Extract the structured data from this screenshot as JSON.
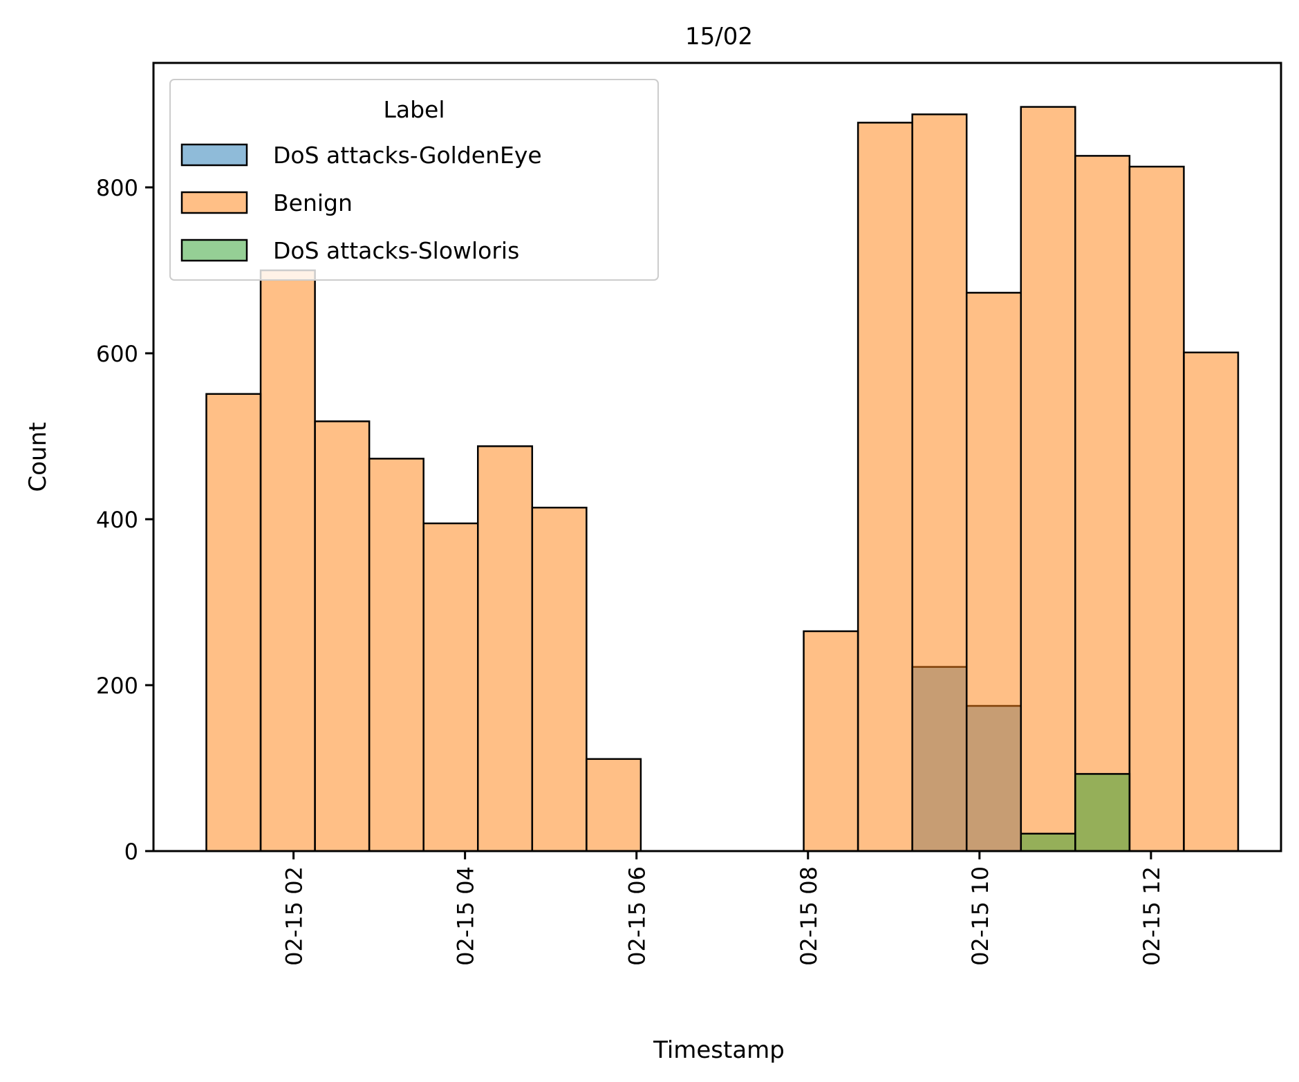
{
  "chart_data": {
    "type": "bar",
    "title": "15/02",
    "xlabel": "Timestamp",
    "ylabel": "Count",
    "xlim": [
      "2022-02-15 00:22",
      "2022-02-15 13:31"
    ],
    "ylim": [
      0,
      950
    ],
    "xticks": [
      {
        "value": "2022-02-15 02:00",
        "label": "02-15 02"
      },
      {
        "value": "2022-02-15 04:00",
        "label": "02-15 04"
      },
      {
        "value": "2022-02-15 06:00",
        "label": "02-15 06"
      },
      {
        "value": "2022-02-15 08:00",
        "label": "02-15 08"
      },
      {
        "value": "2022-02-15 10:00",
        "label": "02-15 10"
      },
      {
        "value": "2022-02-15 12:00",
        "label": "02-15 12"
      }
    ],
    "yticks": [
      0,
      200,
      400,
      600,
      800
    ],
    "bin_edges": [
      "2022-02-15 00:59",
      "2022-02-15 01:37",
      "2022-02-15 02:15",
      "2022-02-15 02:53",
      "2022-02-15 03:31",
      "2022-02-15 04:09",
      "2022-02-15 04:47",
      "2022-02-15 05:25",
      "2022-02-15 06:03",
      "2022-02-15 06:41",
      "2022-02-15 07:19",
      "2022-02-15 07:57",
      "2022-02-15 08:35",
      "2022-02-15 09:13",
      "2022-02-15 09:51",
      "2022-02-15 10:29",
      "2022-02-15 11:07",
      "2022-02-15 11:45",
      "2022-02-15 12:23",
      "2022-02-15 13:01"
    ],
    "series": [
      {
        "name": "DoS attacks-GoldenEye",
        "color": "#1f77b4",
        "values": [
          0,
          0,
          0,
          0,
          0,
          0,
          0,
          0,
          0,
          0,
          0,
          0,
          0,
          222,
          175,
          0,
          0,
          0,
          0
        ]
      },
      {
        "name": "Benign",
        "color": "#ff7f0e",
        "values": [
          551,
          700,
          518,
          473,
          395,
          488,
          414,
          111,
          0,
          0,
          0,
          265,
          878,
          888,
          673,
          897,
          838,
          825,
          601
        ]
      },
      {
        "name": "DoS attacks-Slowloris",
        "color": "#2ca02c",
        "values": [
          0,
          0,
          0,
          0,
          0,
          0,
          0,
          0,
          0,
          0,
          0,
          0,
          0,
          0,
          0,
          21,
          93,
          0,
          0
        ]
      }
    ],
    "legend": {
      "title": "Label",
      "position": "upper left"
    },
    "grid": false
  }
}
